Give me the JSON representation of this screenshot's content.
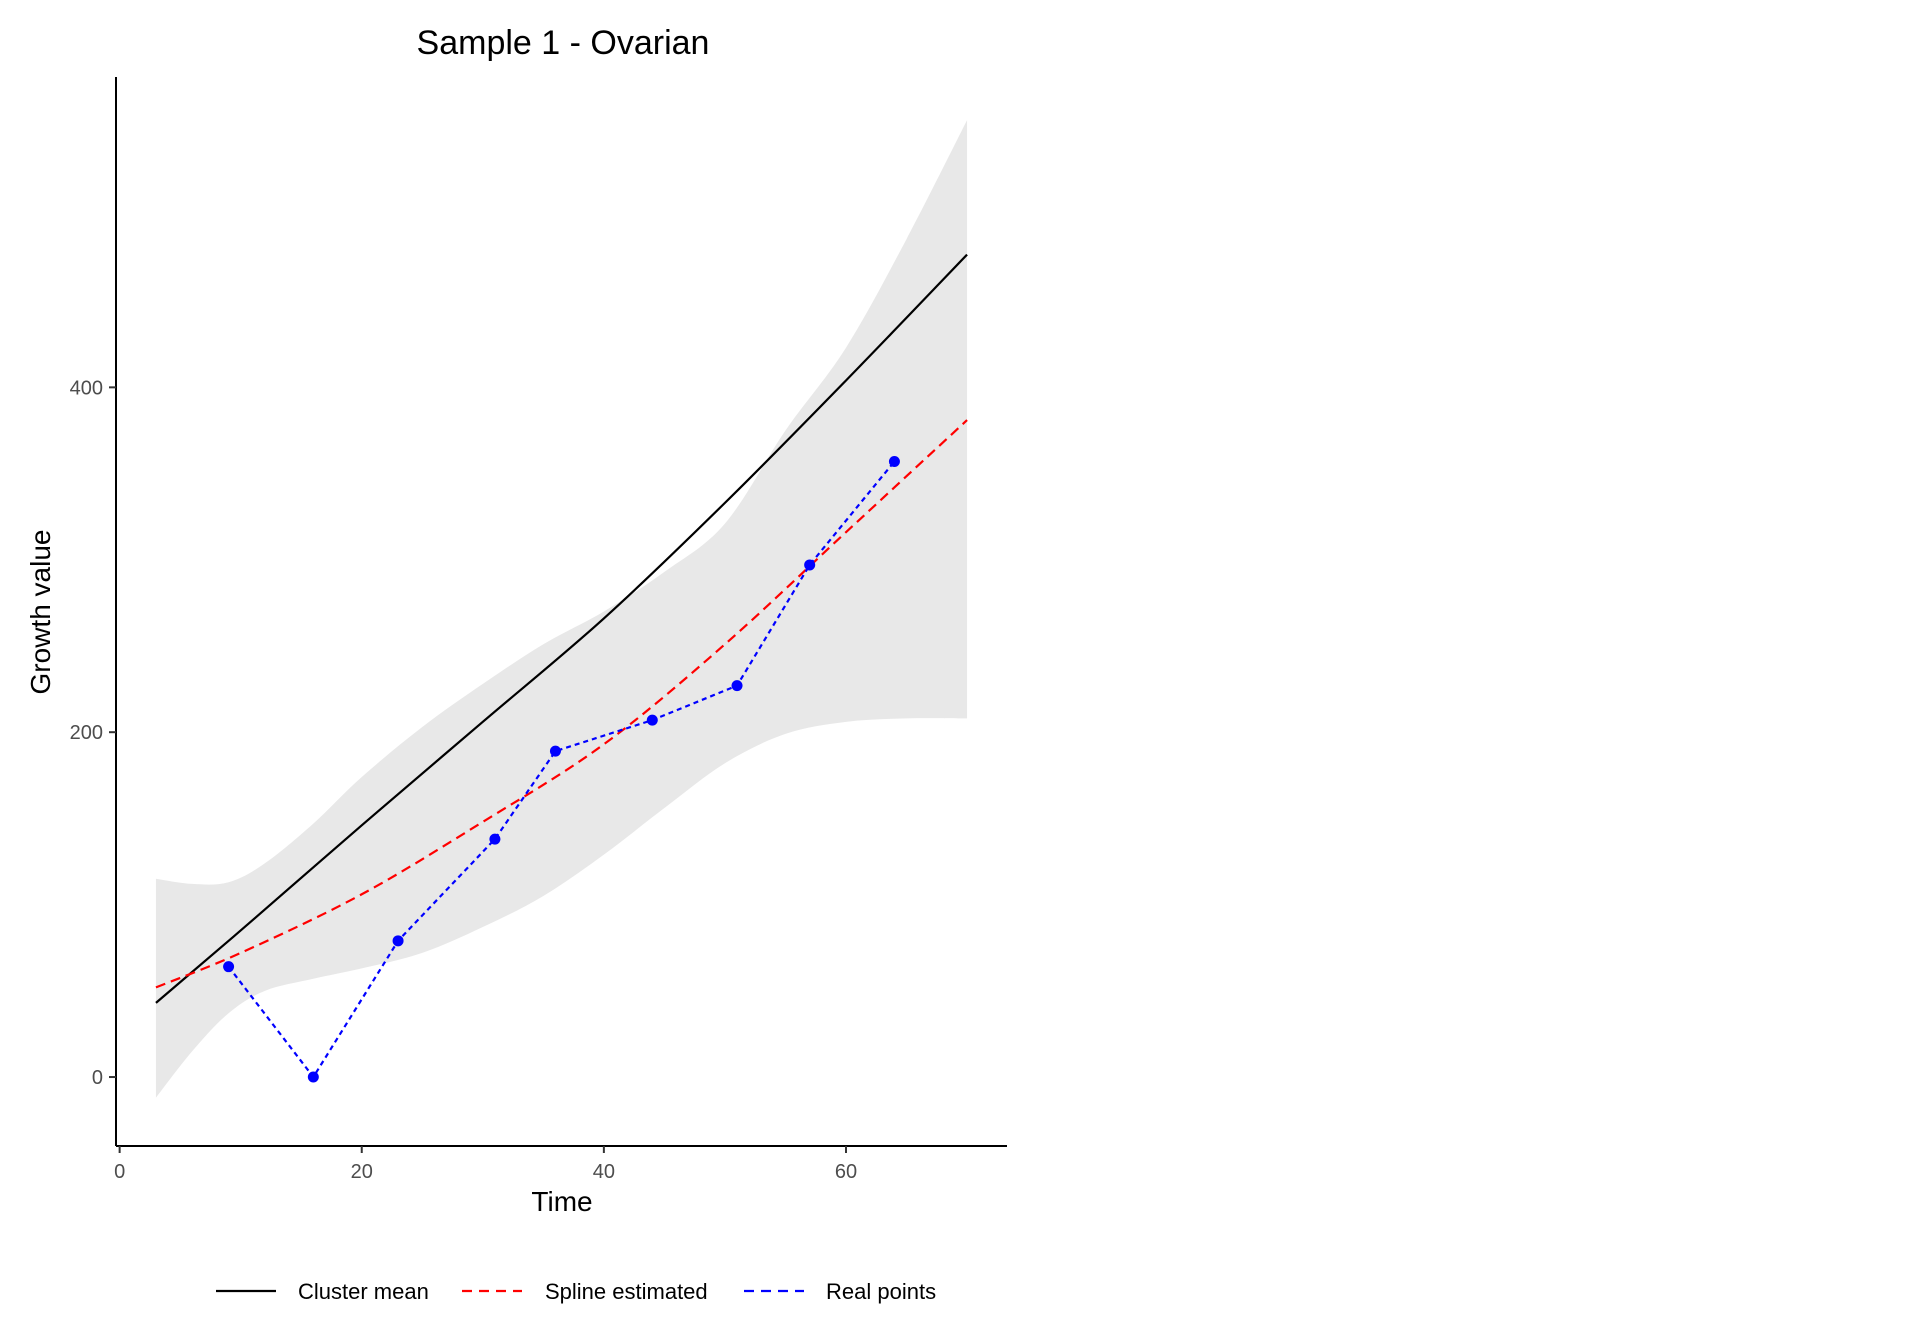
{
  "chart_data": {
    "type": "line",
    "title": "Sample 1 - Ovarian",
    "xlabel": "Time",
    "ylabel": "Growth value",
    "xlim": [
      -0.3,
      73.3
    ],
    "ylim": [
      -40,
      580
    ],
    "xticks": [
      0,
      20,
      40,
      60
    ],
    "yticks": [
      0,
      200,
      400
    ],
    "grid": false,
    "legend_position": "bottom",
    "colors": {
      "cluster_mean": "#000000",
      "spline": "#ff0000",
      "real": "#0000ff",
      "band": "#e8e8e8"
    },
    "legend": [
      {
        "label": "Cluster mean",
        "style": "solid",
        "color": "#000000"
      },
      {
        "label": "Spline estimated",
        "style": "dashed",
        "color": "#ff0000"
      },
      {
        "label": "Real points",
        "style": "dashed",
        "color": "#0000ff"
      }
    ],
    "band": {
      "x": [
        3,
        6,
        9,
        12,
        16,
        20,
        25,
        30,
        35,
        40,
        45,
        50,
        55,
        60,
        65,
        70
      ],
      "lower": [
        -12,
        15,
        37,
        50,
        57,
        63,
        72,
        87,
        105,
        129,
        156,
        182,
        199,
        206,
        208,
        208
      ],
      "upper": [
        115,
        112,
        113,
        124,
        147,
        174,
        203,
        228,
        251,
        270,
        293,
        321,
        375,
        423,
        486,
        555
      ]
    },
    "series": [
      {
        "name": "Cluster mean",
        "x": [
          3,
          10,
          20,
          30,
          40,
          50,
          60,
          70
        ],
        "values": [
          43,
          85,
          146,
          206,
          266,
          333,
          404,
          477
        ]
      },
      {
        "name": "Spline estimated",
        "x": [
          3,
          10,
          20,
          30,
          40,
          50,
          60,
          70
        ],
        "values": [
          52,
          72,
          106,
          148,
          193,
          251,
          316,
          381
        ]
      },
      {
        "name": "Real points",
        "x": [
          9,
          16,
          23,
          31,
          36,
          44,
          51,
          57,
          64
        ],
        "values": [
          64,
          0,
          79,
          138,
          189,
          207,
          227,
          297,
          357
        ]
      }
    ]
  }
}
